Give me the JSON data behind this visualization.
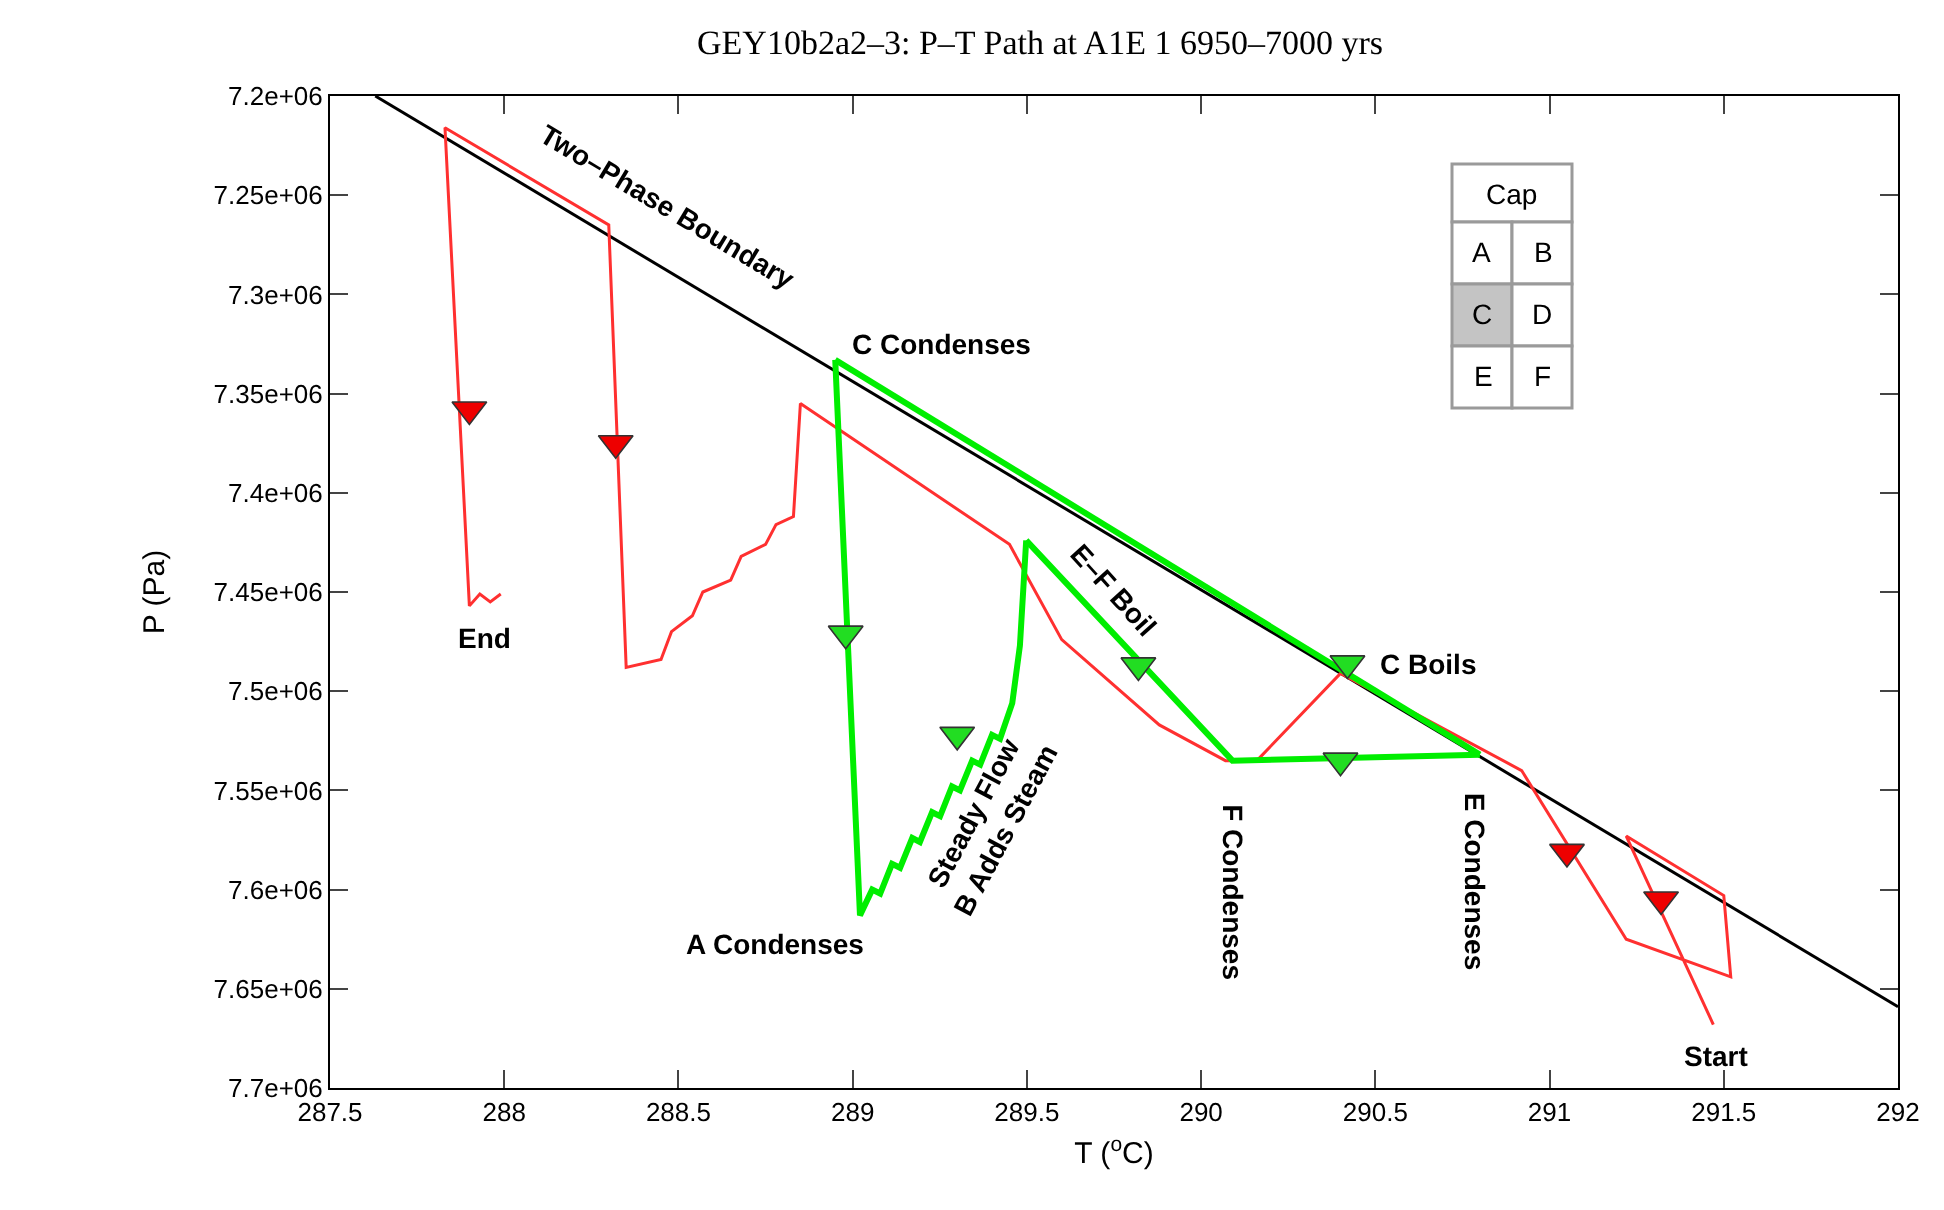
{
  "chart_data": {
    "type": "line",
    "title": "GEY10b2a2–3: P–T Path at A1E 1 6950–7000 yrs",
    "xlabel": "T ($^{o}$C)",
    "ylabel": "P (Pa)",
    "xlim": [
      287.5,
      292
    ],
    "xticks": [
      287.5,
      288,
      288.5,
      289,
      289.5,
      290,
      290.5,
      291,
      291.5,
      292
    ],
    "ylim": [
      7700000,
      7200000
    ],
    "yticks": [
      {
        "value": 7200000,
        "label": "7.2e+06"
      },
      {
        "value": 7250000,
        "label": "7.25e+06"
      },
      {
        "value": 7300000,
        "label": "7.3e+06"
      },
      {
        "value": 7350000,
        "label": "7.35e+06"
      },
      {
        "value": 7400000,
        "label": "7.4e+06"
      },
      {
        "value": 7450000,
        "label": "7.45e+06"
      },
      {
        "value": 7500000,
        "label": "7.5e+06"
      },
      {
        "value": 7550000,
        "label": "7.55e+06"
      },
      {
        "value": 7600000,
        "label": "7.6e+06"
      },
      {
        "value": 7650000,
        "label": "7.65e+06"
      },
      {
        "value": 7700000,
        "label": "7.7e+06"
      }
    ],
    "grid": false,
    "legend": false,
    "series": [
      {
        "color": "#000000",
        "x": [
          287.63,
          292
        ],
        "values": [
          7200000,
          7659000
        ]
      },
      {
        "color": "#ff3030",
        "x": [
          291.47,
          291.22,
          291.5,
          291.52,
          291.22,
          290.92,
          290.4,
          290.16,
          290.07,
          289.88,
          289.6,
          289.45,
          288.85,
          288.83,
          288.78,
          288.75,
          288.68,
          288.65,
          288.57,
          288.54,
          288.48,
          288.45,
          288.35,
          288.3,
          287.83,
          287.9,
          287.93,
          287.96,
          287.99
        ],
        "values": [
          7668000,
          7573000,
          7603000,
          7644000,
          7625000,
          7540000,
          7491000,
          7535000,
          7535000,
          7517000,
          7474000,
          7426000,
          7355000,
          7412000,
          7416000,
          7426000,
          7432000,
          7444000,
          7450000,
          7462000,
          7470000,
          7484000,
          7488000,
          7265000,
          7216000,
          7457000,
          7451000,
          7455000,
          7451000
        ]
      },
      {
        "color": "#00ee00",
        "x": [
          288.95,
          289.021,
          289.056,
          289.079,
          289.113,
          289.136,
          289.171,
          289.193,
          289.228,
          289.251,
          289.285,
          289.308,
          289.343,
          289.366,
          289.4,
          289.423,
          289.458,
          289.48,
          289.498
        ],
        "values": [
          7333000,
          7613000,
          7600000,
          7602000,
          7587000,
          7589000,
          7574000,
          7576000,
          7561000,
          7563000,
          7548000,
          7550000,
          7535000,
          7537000,
          7522000,
          7524000,
          7506000,
          7477000,
          7424000
        ]
      },
      {
        "color": "#00ee00",
        "x": [
          289.498,
          290.09,
          290.8
        ],
        "values": [
          7424000,
          7535000,
          7532000
        ]
      },
      {
        "color": "#00ee00",
        "x": [
          290.8,
          288.95
        ],
        "values": [
          7532000,
          7333000
        ]
      },
      {
        "type": "scatter",
        "marker": "triangle",
        "color": "#ee0000",
        "x": [
          287.9,
          288.32,
          291.05,
          291.32
        ],
        "values": [
          7358000,
          7375000,
          7581000,
          7605000
        ]
      },
      {
        "type": "scatter",
        "marker": "triangle",
        "color": "#22dd22",
        "x": [
          288.98,
          289.3,
          289.82,
          290.4,
          290.42
        ],
        "values": [
          7471000,
          7522000,
          7487000,
          7535000,
          7486000
        ]
      }
    ],
    "annotations": [
      {
        "text": "Two–Phase Boundary",
        "x": 288.5,
        "y": 7292000
      },
      {
        "text": "C Condenses",
        "x": 288.95,
        "y": 7333000
      },
      {
        "text": "End",
        "x": 287.93,
        "y": 7457000
      },
      {
        "text": "A Condenses",
        "x": 289.02,
        "y": 7613000
      },
      {
        "text": "Steady Flow\nB Adds Steam",
        "x": 289.3,
        "y": 7522000
      },
      {
        "text": "E–F Boil",
        "x": 289.75,
        "y": 7471000
      },
      {
        "text": "C Boils",
        "x": 290.42,
        "y": 7486000
      },
      {
        "text": "F Condenses",
        "x": 290.09,
        "y": 7535000
      },
      {
        "text": "E Condenses",
        "x": 290.8,
        "y": 7532000
      },
      {
        "text": "Start",
        "x": 291.47,
        "y": 7668000
      },
      "Cap",
      "A",
      "B",
      "C",
      "D",
      "E",
      "F"
    ]
  }
}
